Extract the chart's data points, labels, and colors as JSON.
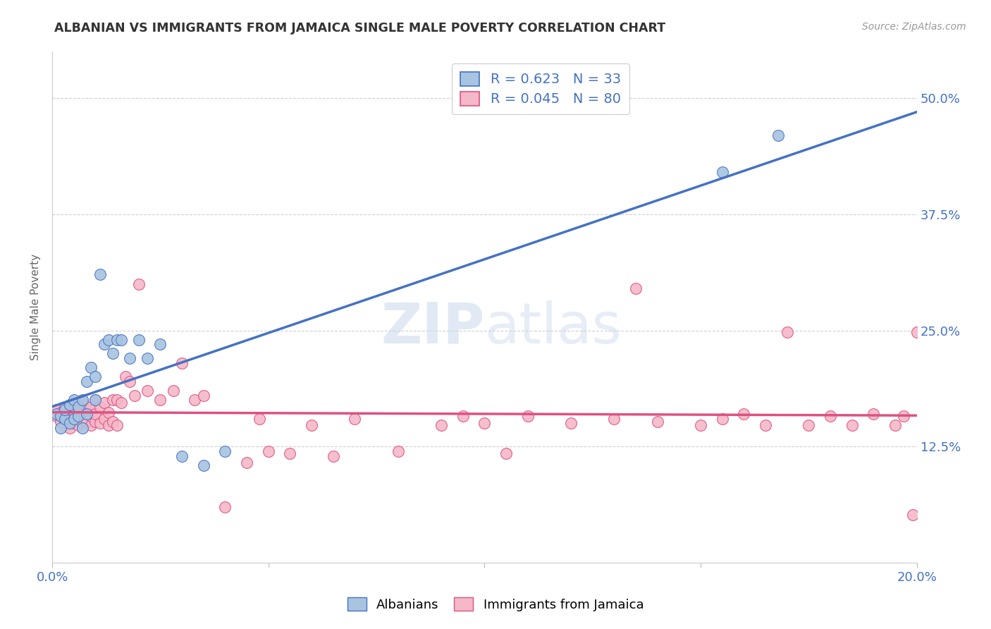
{
  "title": "ALBANIAN VS IMMIGRANTS FROM JAMAICA SINGLE MALE POVERTY CORRELATION CHART",
  "source": "Source: ZipAtlas.com",
  "ylabel": "Single Male Poverty",
  "xlim": [
    0.0,
    0.2
  ],
  "ylim": [
    0.0,
    0.55
  ],
  "xticks": [
    0.0,
    0.05,
    0.1,
    0.15,
    0.2
  ],
  "xticklabels": [
    "0.0%",
    "",
    "",
    "",
    "20.0%"
  ],
  "yticks": [
    0.0,
    0.125,
    0.25,
    0.375,
    0.5
  ],
  "yticklabels": [
    "",
    "12.5%",
    "25.0%",
    "37.5%",
    "50.0%"
  ],
  "albanian_R": 0.623,
  "albanian_N": 33,
  "jamaica_R": 0.045,
  "jamaica_N": 80,
  "albanian_color": "#a8c4e0",
  "albanian_line_color": "#4472c4",
  "jamaica_color": "#f4b8c8",
  "jamaica_line_color": "#e05080",
  "watermark": "ZIPatlas",
  "background_color": "#ffffff",
  "grid_color": "#d0d0d0",
  "albanian_x": [
    0.001,
    0.002,
    0.002,
    0.003,
    0.003,
    0.004,
    0.004,
    0.005,
    0.005,
    0.006,
    0.006,
    0.007,
    0.007,
    0.008,
    0.008,
    0.009,
    0.01,
    0.01,
    0.011,
    0.012,
    0.013,
    0.014,
    0.015,
    0.016,
    0.018,
    0.02,
    0.022,
    0.025,
    0.03,
    0.035,
    0.04,
    0.155,
    0.168
  ],
  "albanian_y": [
    0.16,
    0.145,
    0.158,
    0.155,
    0.165,
    0.15,
    0.17,
    0.155,
    0.175,
    0.158,
    0.168,
    0.145,
    0.175,
    0.16,
    0.195,
    0.21,
    0.2,
    0.175,
    0.31,
    0.235,
    0.24,
    0.225,
    0.24,
    0.24,
    0.22,
    0.24,
    0.22,
    0.235,
    0.115,
    0.105,
    0.12,
    0.42,
    0.46
  ],
  "jamaica_x": [
    0.001,
    0.001,
    0.002,
    0.002,
    0.003,
    0.003,
    0.003,
    0.004,
    0.004,
    0.004,
    0.005,
    0.005,
    0.005,
    0.005,
    0.006,
    0.006,
    0.006,
    0.007,
    0.007,
    0.007,
    0.008,
    0.008,
    0.009,
    0.009,
    0.009,
    0.01,
    0.01,
    0.01,
    0.011,
    0.011,
    0.012,
    0.012,
    0.013,
    0.013,
    0.014,
    0.014,
    0.015,
    0.015,
    0.016,
    0.017,
    0.018,
    0.019,
    0.02,
    0.022,
    0.025,
    0.028,
    0.03,
    0.033,
    0.035,
    0.04,
    0.045,
    0.048,
    0.05,
    0.055,
    0.06,
    0.065,
    0.07,
    0.08,
    0.09,
    0.095,
    0.1,
    0.105,
    0.11,
    0.12,
    0.13,
    0.135,
    0.14,
    0.15,
    0.155,
    0.16,
    0.165,
    0.17,
    0.175,
    0.18,
    0.185,
    0.19,
    0.195,
    0.197,
    0.199,
    0.2
  ],
  "jamaica_y": [
    0.158,
    0.165,
    0.152,
    0.162,
    0.148,
    0.155,
    0.168,
    0.145,
    0.155,
    0.165,
    0.15,
    0.158,
    0.162,
    0.172,
    0.148,
    0.158,
    0.168,
    0.15,
    0.16,
    0.172,
    0.152,
    0.165,
    0.148,
    0.158,
    0.168,
    0.152,
    0.16,
    0.175,
    0.15,
    0.168,
    0.155,
    0.172,
    0.148,
    0.162,
    0.152,
    0.175,
    0.148,
    0.175,
    0.172,
    0.2,
    0.195,
    0.18,
    0.3,
    0.185,
    0.175,
    0.185,
    0.215,
    0.175,
    0.18,
    0.06,
    0.108,
    0.155,
    0.12,
    0.118,
    0.148,
    0.115,
    0.155,
    0.12,
    0.148,
    0.158,
    0.15,
    0.118,
    0.158,
    0.15,
    0.155,
    0.295,
    0.152,
    0.148,
    0.155,
    0.16,
    0.148,
    0.248,
    0.148,
    0.158,
    0.148,
    0.16,
    0.148,
    0.158,
    0.052,
    0.248
  ]
}
